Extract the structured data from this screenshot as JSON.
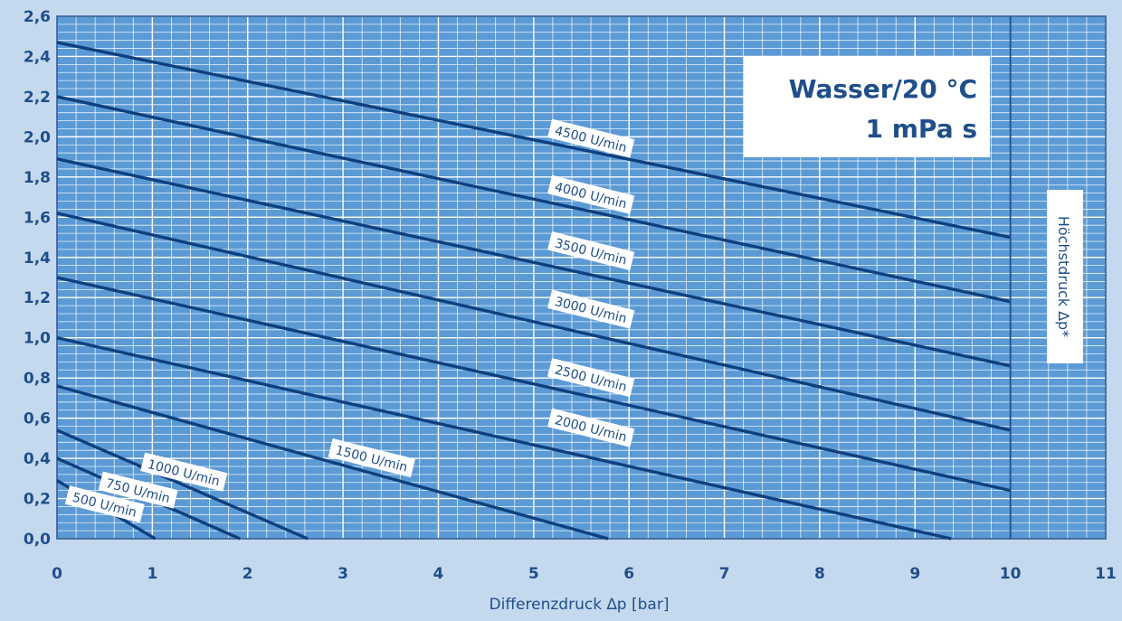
{
  "chart_data": {
    "type": "line",
    "xlabel": "Differenzdruck ∆p [bar]",
    "ylabel": "",
    "xlim": [
      0,
      11
    ],
    "ylim": [
      0,
      2.6
    ],
    "x_ticks": [
      "0",
      "1",
      "2",
      "3",
      "4",
      "5",
      "6",
      "7",
      "8",
      "9",
      "10",
      "11"
    ],
    "y_ticks": [
      "0,0",
      "0,2",
      "0,4",
      "0,6",
      "0,8",
      "1,0",
      "1,2",
      "1,4",
      "1,6",
      "1,8",
      "2,0",
      "2,2",
      "2,4",
      "2,6"
    ],
    "grid": true,
    "annotation_box": {
      "line1": "Wasser/20 °C",
      "line2": "1 mPa s"
    },
    "limit_line": {
      "x": 10,
      "label": "Höchstdruck ∆p*"
    },
    "series": [
      {
        "name": "500 U/min",
        "x": [
          0,
          1.03
        ],
        "y": [
          0.29,
          0.0
        ]
      },
      {
        "name": "750 U/min",
        "x": [
          0,
          1.92
        ],
        "y": [
          0.4,
          0.0
        ]
      },
      {
        "name": "1000 U/min",
        "x": [
          0,
          2.63
        ],
        "y": [
          0.54,
          0.0
        ]
      },
      {
        "name": "1500 U/min",
        "x": [
          0,
          5.78
        ],
        "y": [
          0.76,
          0.0
        ]
      },
      {
        "name": "2000 U/min",
        "x": [
          0,
          9.38
        ],
        "y": [
          1.0,
          0.0
        ]
      },
      {
        "name": "2000 U/min",
        "x": [
          0,
          10
        ],
        "y": [
          1.3,
          0.24
        ]
      },
      {
        "name": "2500 U/min",
        "x": [
          0,
          10
        ],
        "y": [
          1.62,
          0.54
        ]
      },
      {
        "name": "3000 U/min",
        "x": [
          0,
          10
        ],
        "y": [
          1.89,
          0.86
        ]
      },
      {
        "name": "3500 U/min",
        "x": [
          0,
          10
        ],
        "y": [
          2.2,
          1.18
        ]
      },
      {
        "name": "4000 U/min",
        "x": [
          0,
          10
        ],
        "y": [
          2.47,
          1.5
        ]
      }
    ],
    "curve_labels": [
      {
        "text": "500 U/min",
        "x": 0.5,
        "y": 0.17
      },
      {
        "text": "750 U/min",
        "x": 0.85,
        "y": 0.24
      },
      {
        "text": "1000 U/min",
        "x": 1.33,
        "y": 0.33
      },
      {
        "text": "1500 U/min",
        "x": 3.3,
        "y": 0.4
      },
      {
        "text": "2000 U/min",
        "x": 5.6,
        "y": 0.55
      },
      {
        "text": "2500 U/min",
        "x": 5.6,
        "y": 0.8
      },
      {
        "text": "3000 U/min",
        "x": 5.6,
        "y": 1.14
      },
      {
        "text": "3500 U/min",
        "x": 5.6,
        "y": 1.43
      },
      {
        "text": "4000 U/min",
        "x": 5.6,
        "y": 1.71
      },
      {
        "text": "4500 U/min",
        "x": 5.6,
        "y": 1.99
      }
    ]
  }
}
